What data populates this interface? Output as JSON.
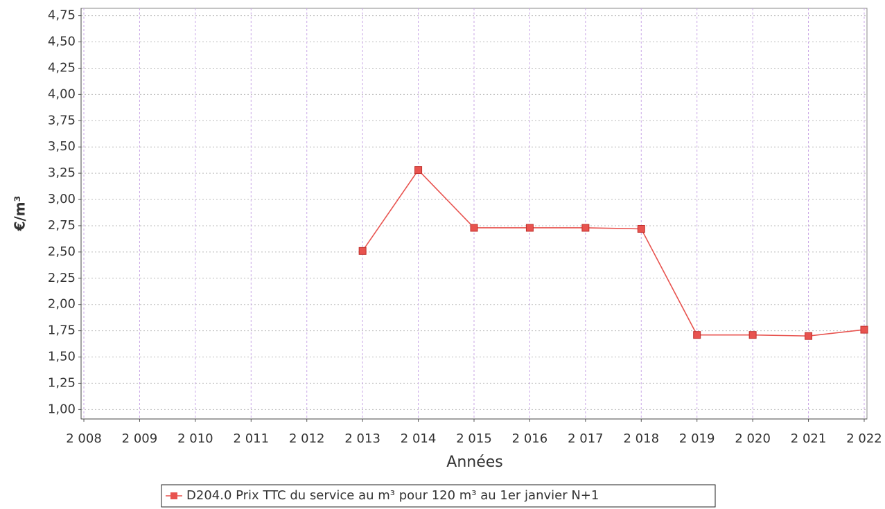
{
  "chart_data": {
    "type": "line",
    "x_label": "Années",
    "y_label": "€/m³",
    "x": [
      2013,
      2014,
      2015,
      2016,
      2017,
      2018,
      2019,
      2020,
      2021,
      2022
    ],
    "series": [
      {
        "name": "D204.0 Prix TTC du service au m³ pour 120 m³ au 1er janvier N+1",
        "color": "#e8534f",
        "values": [
          2.51,
          3.28,
          2.73,
          2.73,
          2.73,
          2.72,
          1.71,
          1.71,
          1.7,
          1.76
        ]
      }
    ],
    "xlim": [
      2007.95,
      2022.05
    ],
    "xticks": [
      {
        "value": 2008,
        "label": "2 008"
      },
      {
        "value": 2009,
        "label": "2 009"
      },
      {
        "value": 2010,
        "label": "2 010"
      },
      {
        "value": 2011,
        "label": "2 011"
      },
      {
        "value": 2012,
        "label": "2 012"
      },
      {
        "value": 2013,
        "label": "2 013"
      },
      {
        "value": 2014,
        "label": "2 014"
      },
      {
        "value": 2015,
        "label": "2 015"
      },
      {
        "value": 2016,
        "label": "2 016"
      },
      {
        "value": 2017,
        "label": "2 017"
      },
      {
        "value": 2018,
        "label": "2 018"
      },
      {
        "value": 2019,
        "label": "2 019"
      },
      {
        "value": 2020,
        "label": "2 020"
      },
      {
        "value": 2021,
        "label": "2 021"
      },
      {
        "value": 2022,
        "label": "2 022"
      }
    ],
    "ylim": [
      0.91,
      4.82
    ],
    "yticks": [
      {
        "value": 1.0,
        "label": "1,00"
      },
      {
        "value": 1.25,
        "label": "1,25"
      },
      {
        "value": 1.5,
        "label": "1,50"
      },
      {
        "value": 1.75,
        "label": "1,75"
      },
      {
        "value": 2.0,
        "label": "2,00"
      },
      {
        "value": 2.25,
        "label": "2,25"
      },
      {
        "value": 2.5,
        "label": "2,50"
      },
      {
        "value": 2.75,
        "label": "2,75"
      },
      {
        "value": 3.0,
        "label": "3,00"
      },
      {
        "value": 3.25,
        "label": "3,25"
      },
      {
        "value": 3.5,
        "label": "3,50"
      },
      {
        "value": 3.75,
        "label": "3,75"
      },
      {
        "value": 4.0,
        "label": "4,00"
      },
      {
        "value": 4.25,
        "label": "4,25"
      },
      {
        "value": 4.5,
        "label": "4,50"
      },
      {
        "value": 4.75,
        "label": "4,75"
      }
    ],
    "grid": true,
    "legend": "bottom"
  }
}
